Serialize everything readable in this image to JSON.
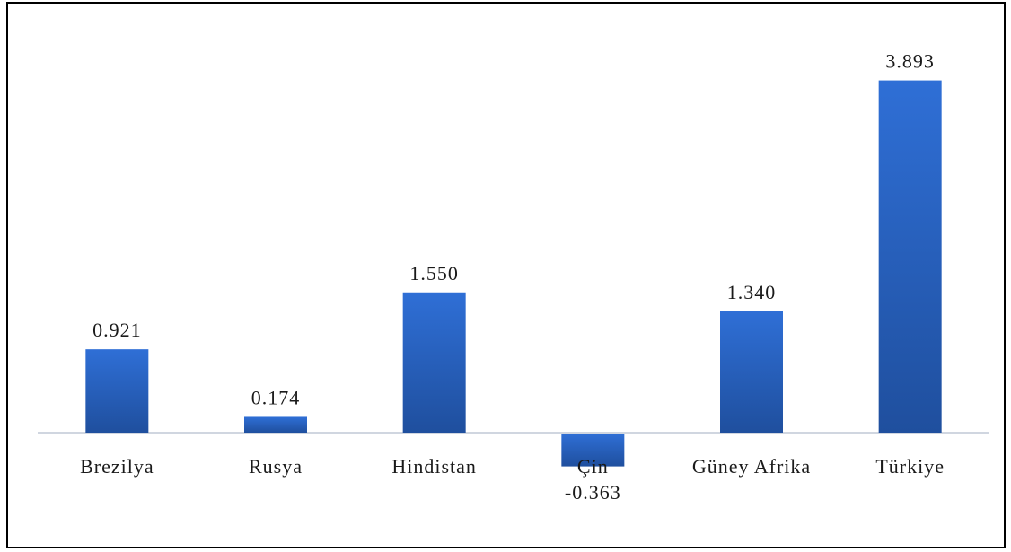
{
  "chart_data": {
    "type": "bar",
    "categories": [
      "Brezilya",
      "Rusya",
      "Hindistan",
      "Çin",
      "Güney Afrika",
      "Türkiye"
    ],
    "values": [
      0.921,
      0.174,
      1.55,
      -0.363,
      1.34,
      3.893
    ],
    "value_labels": [
      "0.921",
      "0.174",
      "1.550",
      "-0.363",
      "1.340",
      "3.893"
    ],
    "title": "",
    "xlabel": "",
    "ylabel": "",
    "ylim": [
      -0.5,
      4.2
    ],
    "grid": false,
    "legend": "none",
    "colors": {
      "bar_top": "#2f6fd6",
      "bar_bottom": "#1f4f9e",
      "axis": "#c0c8d6",
      "text": "#1a1a1a"
    }
  }
}
